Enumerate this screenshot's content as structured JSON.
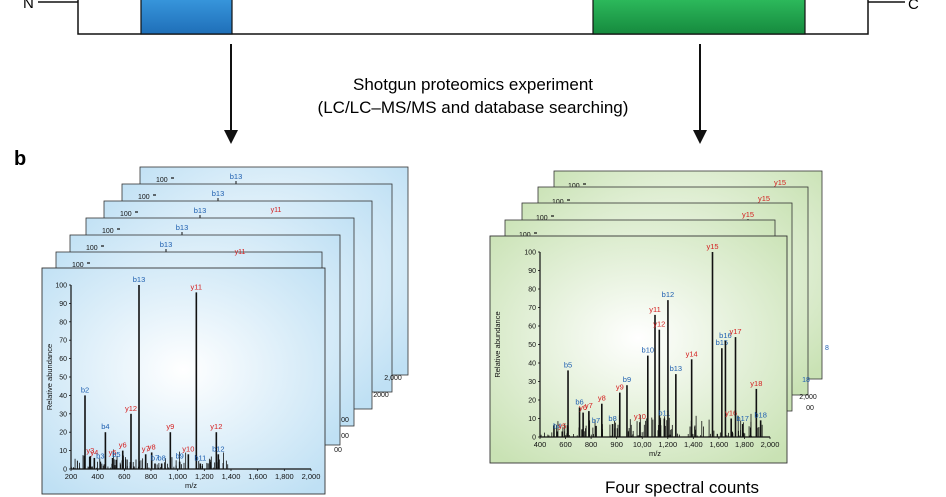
{
  "protein": {
    "n_label": "N",
    "c_label": "C",
    "domain1_color": "#1f78c8",
    "domain2_color": "#1aa54a"
  },
  "process": {
    "line1": "Shotgun proteomics experiment",
    "line2": "(LC/LC–MS/MS and database searching)"
  },
  "panel_label": "b",
  "caption_right": "Four spectral counts",
  "axis": {
    "ylabel": "Relative abundance",
    "xlabel": "m/z",
    "y_ticks": [
      "0",
      "10",
      "20",
      "30",
      "40",
      "50",
      "60",
      "70",
      "80",
      "90",
      "100"
    ],
    "top_tick": "100"
  },
  "left_stack": {
    "color_light": "#e8f4fc",
    "color_dark": "#bfe0f4",
    "back_peak_labels": [
      "b13",
      "b13",
      "b13",
      "b13",
      "b13"
    ],
    "back_partial_labels": [
      "y11",
      "y11"
    ],
    "back_x_end": [
      "2000",
      "2,000"
    ],
    "chart_data": {
      "type": "bar",
      "x_ticks": [
        "200",
        "400",
        "600",
        "800",
        "1,000",
        "1,200",
        "1,400",
        "1,600",
        "1,800",
        "2,000"
      ],
      "xlim": [
        200,
        2000
      ],
      "ylim": [
        0,
        100
      ],
      "peaks": [
        {
          "mz": 305,
          "y": 40,
          "label": "b2",
          "ion": "b"
        },
        {
          "mz": 458,
          "y": 20,
          "label": "b4",
          "ion": "b"
        },
        {
          "mz": 345,
          "y": 7,
          "label": "y3",
          "ion": "y"
        },
        {
          "mz": 375,
          "y": 6,
          "label": "y4",
          "ion": "y"
        },
        {
          "mz": 420,
          "y": 4,
          "label": "b3",
          "ion": "b"
        },
        {
          "mz": 512,
          "y": 6,
          "label": "y5",
          "ion": "y"
        },
        {
          "mz": 540,
          "y": 5,
          "label": "b5",
          "ion": "b"
        },
        {
          "mz": 588,
          "y": 10,
          "label": "y6",
          "ion": "y"
        },
        {
          "mz": 650,
          "y": 30,
          "label": "y12",
          "ion": "y"
        },
        {
          "mz": 710,
          "y": 100,
          "label": "b13",
          "ion": "b"
        },
        {
          "mz": 760,
          "y": 8,
          "label": "y7",
          "ion": "y"
        },
        {
          "mz": 805,
          "y": 9,
          "label": "y8",
          "ion": "y"
        },
        {
          "mz": 830,
          "y": 3,
          "label": "b7",
          "ion": "b"
        },
        {
          "mz": 880,
          "y": 3,
          "label": "b8",
          "ion": "b"
        },
        {
          "mz": 945,
          "y": 20,
          "label": "y9",
          "ion": "y"
        },
        {
          "mz": 1015,
          "y": 4,
          "label": "b9",
          "ion": "b"
        },
        {
          "mz": 1080,
          "y": 8,
          "label": "y10",
          "ion": "y"
        },
        {
          "mz": 1140,
          "y": 96,
          "label": "y11",
          "ion": "y"
        },
        {
          "mz": 1170,
          "y": 3,
          "label": "b11",
          "ion": "b"
        },
        {
          "mz": 1290,
          "y": 20,
          "label": "y12",
          "ion": "y"
        },
        {
          "mz": 1305,
          "y": 8,
          "label": "b12",
          "ion": "b"
        }
      ]
    }
  },
  "right_stack": {
    "color_light": "#eef6e6",
    "color_dark": "#c9e2b4",
    "back_peak_labels": [
      "y15",
      "y15",
      "y15"
    ],
    "back_right_labels": [
      "18",
      "18"
    ],
    "back_x_end": [
      "2,000",
      "2,000"
    ],
    "chart_data": {
      "type": "bar",
      "x_ticks": [
        "400",
        "600",
        "800",
        "900",
        "10,00",
        "1,200",
        "1,400",
        "1,600",
        "1,800",
        "2,000"
      ],
      "xlim": [
        400,
        2000
      ],
      "ylim": [
        0,
        100
      ],
      "peaks": [
        {
          "mz": 520,
          "y": 3,
          "label": "b4",
          "ion": "b"
        },
        {
          "mz": 555,
          "y": 3,
          "label": "y5",
          "ion": "y"
        },
        {
          "mz": 595,
          "y": 36,
          "label": "b5",
          "ion": "b"
        },
        {
          "mz": 675,
          "y": 16,
          "label": "b6",
          "ion": "b"
        },
        {
          "mz": 700,
          "y": 13,
          "label": "y6",
          "ion": "y"
        },
        {
          "mz": 740,
          "y": 14,
          "label": "y7",
          "ion": "y"
        },
        {
          "mz": 790,
          "y": 6,
          "label": "b7",
          "ion": "b"
        },
        {
          "mz": 830,
          "y": 18,
          "label": "y8",
          "ion": "y"
        },
        {
          "mz": 905,
          "y": 7,
          "label": "b8",
          "ion": "b"
        },
        {
          "mz": 955,
          "y": 24,
          "label": "y9",
          "ion": "y"
        },
        {
          "mz": 1005,
          "y": 28,
          "label": "b9",
          "ion": "b"
        },
        {
          "mz": 1095,
          "y": 8,
          "label": "y10",
          "ion": "y"
        },
        {
          "mz": 1150,
          "y": 44,
          "label": "b10",
          "ion": "b"
        },
        {
          "mz": 1200,
          "y": 66,
          "label": "y11",
          "ion": "y"
        },
        {
          "mz": 1230,
          "y": 58,
          "label": "y12",
          "ion": "y"
        },
        {
          "mz": 1265,
          "y": 10,
          "label": "b11",
          "ion": "b"
        },
        {
          "mz": 1290,
          "y": 74,
          "label": "b12",
          "ion": "b"
        },
        {
          "mz": 1345,
          "y": 34,
          "label": "b13",
          "ion": "b"
        },
        {
          "mz": 1455,
          "y": 42,
          "label": "y14",
          "ion": "y"
        },
        {
          "mz": 1600,
          "y": 100,
          "label": "y15",
          "ion": "y"
        },
        {
          "mz": 1665,
          "y": 48,
          "label": "b15",
          "ion": "b"
        },
        {
          "mz": 1690,
          "y": 52,
          "label": "b16",
          "ion": "b"
        },
        {
          "mz": 1730,
          "y": 10,
          "label": "y16",
          "ion": "y"
        },
        {
          "mz": 1760,
          "y": 54,
          "label": "y17",
          "ion": "y"
        },
        {
          "mz": 1810,
          "y": 7,
          "label": "b17",
          "ion": "b"
        },
        {
          "mz": 1905,
          "y": 26,
          "label": "y18",
          "ion": "y"
        },
        {
          "mz": 1935,
          "y": 9,
          "label": "b18",
          "ion": "b"
        }
      ]
    }
  }
}
